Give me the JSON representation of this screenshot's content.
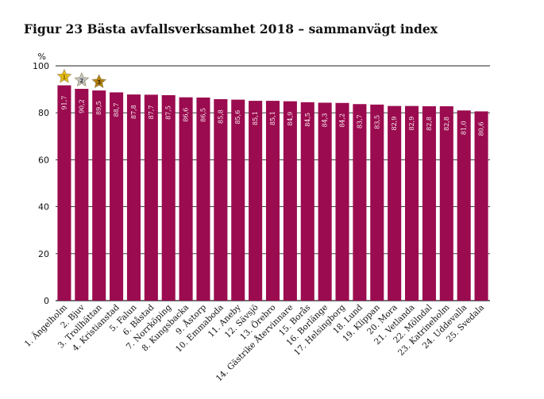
{
  "title": "Figur 23 Bästa avfallsverksamhet 2018 – sammanvägt index",
  "colors": {
    "bar": "#9b0b4f",
    "gold": "#f1c40f",
    "silver": "#c8c8c8",
    "bronze": "#b8860b"
  },
  "chart_data": {
    "type": "bar",
    "title": "Figur 23 Bästa avfallsverksamhet 2018 – sammanvägt index",
    "ylabel": "%",
    "xlabel": "",
    "ylim": [
      0,
      100
    ],
    "yticks": [
      0,
      20,
      40,
      60,
      80,
      100
    ],
    "grid": true,
    "categories": [
      "1. Ängelholm",
      "2. Bjuv",
      "3. Trollhättan",
      "4. Kristianstad",
      "5. Falun",
      "6. Båstad",
      "7. Norrköping",
      "8. Kungsbacka",
      "9. Åstorp",
      "10. Emmaboda",
      "11. Aneby",
      "12. Sävsjö",
      "13. Örebro",
      "14. Gästrike Återvinnare",
      "15. Borås",
      "16. Borlänge",
      "17. Helsingborg",
      "18. Lund",
      "19. Klippan",
      "20. Mora",
      "21. Vetlanda",
      "22. Mölndal",
      "23. Katrineholm",
      "24. Uddevalla",
      "25. Svedala"
    ],
    "values": [
      91.7,
      90.2,
      89.5,
      88.7,
      87.8,
      87.7,
      87.5,
      86.6,
      86.5,
      85.8,
      85.6,
      85.1,
      85.1,
      84.9,
      84.5,
      84.3,
      84.2,
      83.7,
      83.5,
      82.9,
      82.9,
      82.8,
      82.8,
      81.0,
      80.6
    ],
    "value_labels": [
      "91,7",
      "90,2",
      "89,5",
      "88,7",
      "87,8",
      "87,7",
      "87,5",
      "86,6",
      "86,5",
      "85,8",
      "85,6",
      "85,1",
      "85,1",
      "84,9",
      "84,5",
      "84,3",
      "84,2",
      "83,7",
      "83,5",
      "82,9",
      "82,9",
      "82,8",
      "82,8",
      "81,0",
      "80,6"
    ],
    "badges": [
      "1",
      "2",
      "3"
    ]
  }
}
